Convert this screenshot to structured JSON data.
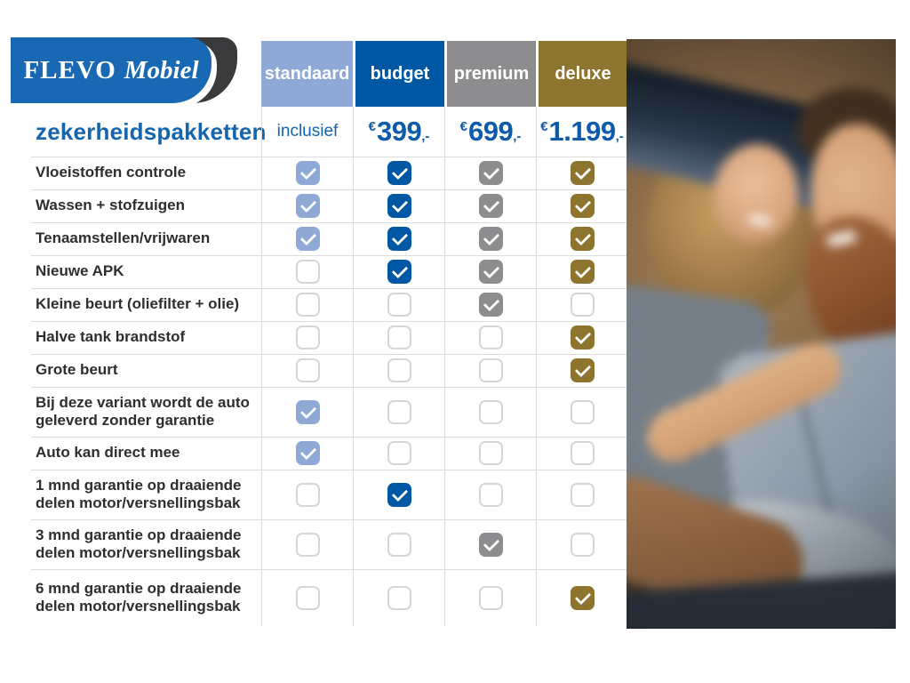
{
  "brand": {
    "primary": "FLEVO",
    "secondary": "Mobiel"
  },
  "title": "zekerheidspakketten",
  "packages": [
    {
      "name": "standaard",
      "color": "#8FA9D6",
      "price_text": "inclusief"
    },
    {
      "name": "budget",
      "color": "#0058A5",
      "currency": "€",
      "amount": "399",
      "suffix": ",-"
    },
    {
      "name": "premium",
      "color": "#8D8D90",
      "currency": "€",
      "amount": "699",
      "suffix": ",-"
    },
    {
      "name": "deluxe",
      "color": "#8E752F",
      "currency": "€",
      "amount": "1.199",
      "suffix": ",-"
    }
  ],
  "rows": [
    {
      "label": "Vloeistoffen controle",
      "checks": [
        true,
        true,
        true,
        true
      ],
      "tall": false
    },
    {
      "label": "Wassen + stofzuigen",
      "checks": [
        true,
        true,
        true,
        true
      ],
      "tall": false
    },
    {
      "label": "Tenaamstellen/vrijwaren",
      "checks": [
        true,
        true,
        true,
        true
      ],
      "tall": false
    },
    {
      "label": "Nieuwe APK",
      "checks": [
        false,
        true,
        true,
        true
      ],
      "tall": false
    },
    {
      "label": "Kleine beurt (oliefilter + olie)",
      "checks": [
        false,
        false,
        true,
        false
      ],
      "tall": false
    },
    {
      "label": "Halve tank brandstof",
      "checks": [
        false,
        false,
        false,
        true
      ],
      "tall": false
    },
    {
      "label": "Grote beurt",
      "checks": [
        false,
        false,
        false,
        true
      ],
      "tall": false
    },
    {
      "label": "Bij deze variant wordt de auto geleverd zonder garantie",
      "checks": [
        true,
        false,
        false,
        false
      ],
      "tall": true
    },
    {
      "label": "Auto kan direct mee",
      "checks": [
        true,
        false,
        false,
        false
      ],
      "tall": false
    },
    {
      "label": "1 mnd garantie op draaiende delen motor/versnellingsbak",
      "checks": [
        false,
        true,
        false,
        false
      ],
      "tall": true
    },
    {
      "label": "3 mnd garantie op draaiende delen motor/versnellingsbak",
      "checks": [
        false,
        false,
        true,
        false
      ],
      "tall": true
    },
    {
      "label": "6 mnd garantie op draaiende delen motor/versnellingsbak",
      "checks": [
        false,
        false,
        false,
        true
      ],
      "tall": true
    }
  ],
  "photo": {
    "semantic": "couple-smiling-in-car-photo"
  }
}
